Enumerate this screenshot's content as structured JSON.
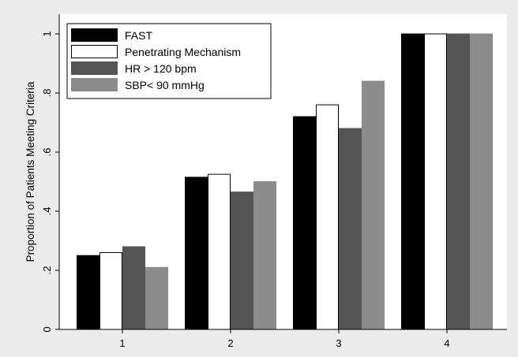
{
  "chart_data": {
    "type": "bar",
    "categories": [
      "1",
      "2",
      "3",
      "4"
    ],
    "series": [
      {
        "name": "FAST",
        "values": [
          0.25,
          0.515,
          0.72,
          1.0
        ],
        "fill": "#000000",
        "stroke": "#000000"
      },
      {
        "name": "Penetrating Mechanism",
        "values": [
          0.26,
          0.525,
          0.76,
          1.0
        ],
        "fill": "#ffffff",
        "stroke": "#000000"
      },
      {
        "name": "HR > 120 bpm",
        "values": [
          0.28,
          0.465,
          0.68,
          1.0
        ],
        "fill": "#555555",
        "stroke": "#555555"
      },
      {
        "name": "SBP< 90 mmHg",
        "values": [
          0.21,
          0.5,
          0.84,
          1.0
        ],
        "fill": "#8c8c8c",
        "stroke": "#8c8c8c"
      }
    ],
    "ylabel": "Proportion of Patients Meeting Criteria",
    "xlabel": "",
    "ylim": [
      0,
      1
    ],
    "yticks": [
      {
        "value": 0,
        "label": "0"
      },
      {
        "value": 0.2,
        "label": ".2"
      },
      {
        "value": 0.4,
        "label": ".4"
      },
      {
        "value": 0.6,
        "label": ".6"
      },
      {
        "value": 0.8,
        "label": ".8"
      },
      {
        "value": 1,
        "label": "1"
      }
    ],
    "grid": false,
    "legend_position": "top-left",
    "background": "#ebebeb",
    "plot_background": "#ffffff"
  }
}
